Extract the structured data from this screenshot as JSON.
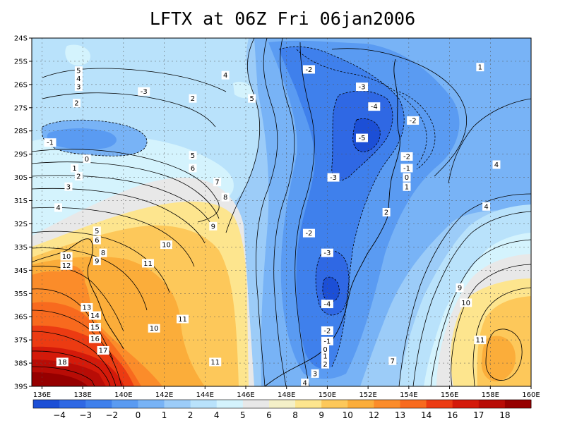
{
  "title": "LFTX at 06Z Fri 06jan2006",
  "chart_data": {
    "type": "heatmap",
    "variable": "LFTX",
    "x_ticks": [
      "136E",
      "138E",
      "140E",
      "142E",
      "144E",
      "146E",
      "148E",
      "150E",
      "152E",
      "154E",
      "156E",
      "158E",
      "160E"
    ],
    "y_ticks": [
      "24S",
      "25S",
      "26S",
      "27S",
      "28S",
      "29S",
      "30S",
      "31S",
      "32S",
      "33S",
      "34S",
      "35S",
      "36S",
      "37S",
      "38S",
      "39S"
    ],
    "xlim": [
      135.5,
      160
    ],
    "ylim": [
      -39,
      -24
    ],
    "grid": true,
    "colorbar": {
      "labels": [
        "-4",
        "-3",
        "-2",
        "0",
        "1",
        "2",
        "4",
        "5",
        "6",
        "8",
        "9",
        "10",
        "12",
        "13",
        "14",
        "16",
        "17",
        "18"
      ],
      "colors": [
        "#1c4fd6",
        "#2f68e4",
        "#3f80ec",
        "#5a9bf2",
        "#78b3f6",
        "#9cccf8",
        "#b9e2fb",
        "#d4f3fd",
        "#e8e8e8",
        "#f4f0c8",
        "#fde58e",
        "#fdc85a",
        "#fbad3a",
        "#fb8c2a",
        "#f86a1e",
        "#ec3b12",
        "#d41a0a",
        "#b80c06",
        "#960000"
      ]
    },
    "contour_labels": [
      {
        "text": "5",
        "lon": 137.8,
        "lat": -25.4
      },
      {
        "text": "4",
        "lon": 137.8,
        "lat": -25.75
      },
      {
        "text": "3",
        "lon": 137.8,
        "lat": -26.1
      },
      {
        "text": "-3",
        "lon": 141.0,
        "lat": -26.3
      },
      {
        "text": "2",
        "lon": 143.4,
        "lat": -26.6
      },
      {
        "text": "4",
        "lon": 145.0,
        "lat": -25.6
      },
      {
        "text": "5",
        "lon": 146.3,
        "lat": -26.6
      },
      {
        "text": "2",
        "lon": 137.7,
        "lat": -26.8
      },
      {
        "text": "-1",
        "lon": 136.4,
        "lat": -28.5
      },
      {
        "text": "0",
        "lon": 138.2,
        "lat": -29.2
      },
      {
        "text": "1",
        "lon": 137.6,
        "lat": -29.6
      },
      {
        "text": "2",
        "lon": 137.8,
        "lat": -29.95
      },
      {
        "text": "3",
        "lon": 137.3,
        "lat": -30.4
      },
      {
        "text": "4",
        "lon": 136.8,
        "lat": -31.3
      },
      {
        "text": "5",
        "lon": 143.4,
        "lat": -29.05
      },
      {
        "text": "6",
        "lon": 143.4,
        "lat": -29.6
      },
      {
        "text": "7",
        "lon": 144.6,
        "lat": -30.2
      },
      {
        "text": "8",
        "lon": 145.0,
        "lat": -30.85
      },
      {
        "text": "9",
        "lon": 144.4,
        "lat": -32.1
      },
      {
        "text": "5",
        "lon": 138.7,
        "lat": -32.3
      },
      {
        "text": "6",
        "lon": 138.7,
        "lat": -32.7
      },
      {
        "text": "8",
        "lon": 139.0,
        "lat": -33.25
      },
      {
        "text": "9",
        "lon": 138.7,
        "lat": -33.6
      },
      {
        "text": "10",
        "lon": 137.2,
        "lat": -33.4
      },
      {
        "text": "12",
        "lon": 137.2,
        "lat": -33.8
      },
      {
        "text": "10",
        "lon": 142.1,
        "lat": -32.9
      },
      {
        "text": "11",
        "lon": 141.2,
        "lat": -33.7
      },
      {
        "text": "13",
        "lon": 138.2,
        "lat": -35.6
      },
      {
        "text": "14",
        "lon": 138.6,
        "lat": -35.95
      },
      {
        "text": "15",
        "lon": 138.6,
        "lat": -36.45
      },
      {
        "text": "16",
        "lon": 138.6,
        "lat": -36.95
      },
      {
        "text": "17",
        "lon": 139.0,
        "lat": -37.45
      },
      {
        "text": "18",
        "lon": 137.0,
        "lat": -37.95
      },
      {
        "text": "11",
        "lon": 142.9,
        "lat": -36.1
      },
      {
        "text": "10",
        "lon": 141.5,
        "lat": -36.5
      },
      {
        "text": "11",
        "lon": 144.5,
        "lat": -37.95
      },
      {
        "text": "-2",
        "lon": 149.1,
        "lat": -25.35
      },
      {
        "text": "-3",
        "lon": 151.7,
        "lat": -26.1
      },
      {
        "text": "-4",
        "lon": 152.3,
        "lat": -26.95
      },
      {
        "text": "-2",
        "lon": 154.2,
        "lat": -27.55
      },
      {
        "text": "1",
        "lon": 157.5,
        "lat": -25.25
      },
      {
        "text": "-5",
        "lon": 151.7,
        "lat": -28.3
      },
      {
        "text": "-2",
        "lon": 153.9,
        "lat": -29.1
      },
      {
        "text": "-1",
        "lon": 153.9,
        "lat": -29.6
      },
      {
        "text": "0",
        "lon": 153.9,
        "lat": -30.0
      },
      {
        "text": "1",
        "lon": 153.9,
        "lat": -30.4
      },
      {
        "text": "-3",
        "lon": 150.3,
        "lat": -30.0
      },
      {
        "text": "4",
        "lon": 158.3,
        "lat": -29.45
      },
      {
        "text": "2",
        "lon": 152.9,
        "lat": -31.5
      },
      {
        "text": "4",
        "lon": 157.8,
        "lat": -31.25
      },
      {
        "text": "-2",
        "lon": 149.1,
        "lat": -32.4
      },
      {
        "text": "-3",
        "lon": 150.0,
        "lat": -33.25
      },
      {
        "text": "-4",
        "lon": 150.0,
        "lat": -35.45
      },
      {
        "text": "-2",
        "lon": 150.0,
        "lat": -36.6
      },
      {
        "text": "-1",
        "lon": 150.0,
        "lat": -37.05
      },
      {
        "text": "0",
        "lon": 149.9,
        "lat": -37.4
      },
      {
        "text": "1",
        "lon": 149.9,
        "lat": -37.7
      },
      {
        "text": "2",
        "lon": 149.9,
        "lat": -38.05
      },
      {
        "text": "3",
        "lon": 149.4,
        "lat": -38.45
      },
      {
        "text": "4",
        "lon": 148.9,
        "lat": -38.85
      },
      {
        "text": "7",
        "lon": 153.2,
        "lat": -37.9
      },
      {
        "text": "9",
        "lon": 156.5,
        "lat": -34.75
      },
      {
        "text": "10",
        "lon": 156.8,
        "lat": -35.4
      },
      {
        "text": "11",
        "lon": 157.5,
        "lat": -37.0
      }
    ]
  }
}
